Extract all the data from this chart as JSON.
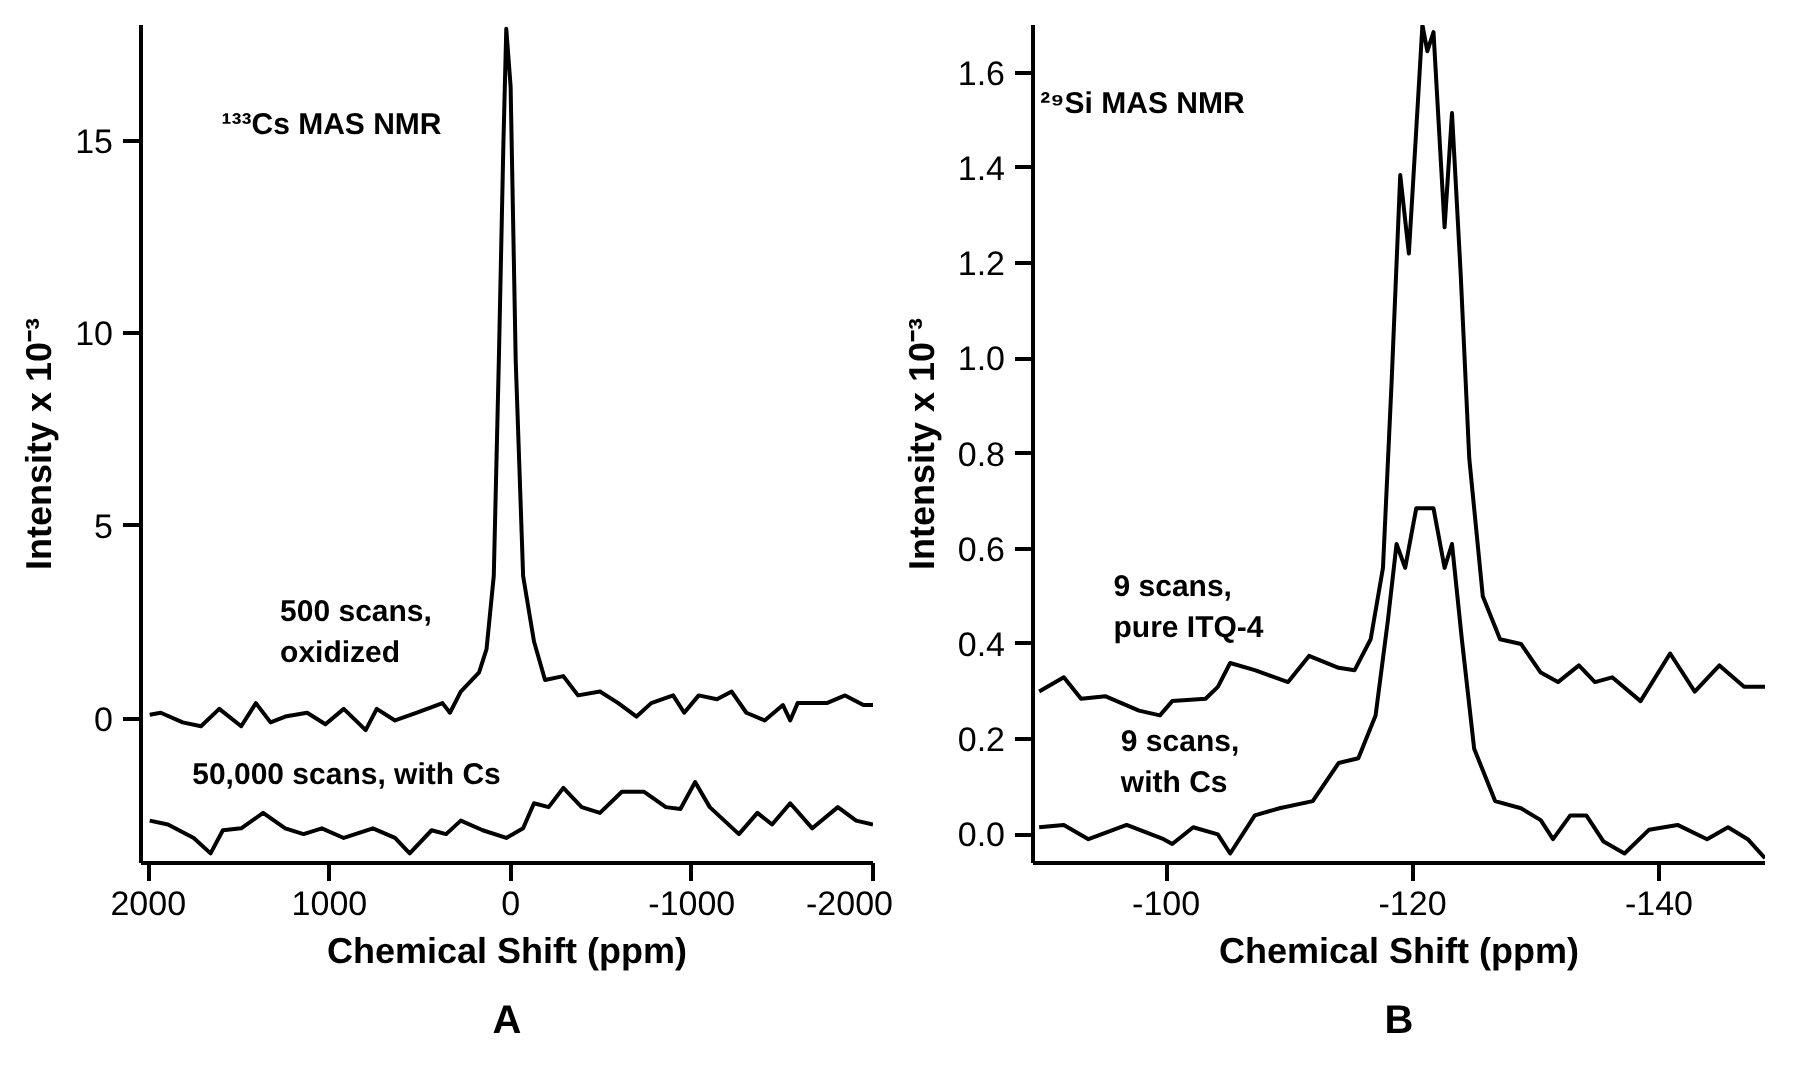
{
  "chart_data": [
    {
      "type": "line",
      "xlabel": "Chemical Shift (ppm)",
      "ylabel": "Intensity x 10⁻³",
      "annotations": [
        "¹³³Cs MAS NMR",
        "A"
      ],
      "xlim": [
        2040,
        -2000
      ],
      "ylim": [
        -3.75,
        18
      ],
      "xticks": [
        2000,
        1000,
        0,
        -1000,
        -2000
      ],
      "yticks": [
        0,
        5,
        10,
        15
      ],
      "grid": false,
      "marker": "none",
      "line_style": "solid",
      "series": [
        {
          "name": "500 scans,\noxidized",
          "color": "#000000",
          "x": [
            1992,
            1931,
            1810,
            1709,
            1608,
            1487,
            1406,
            1325,
            1244,
            1123,
            1022,
            921,
            800,
            739,
            638,
            517,
            376,
            335,
            275,
            174,
            133,
            93,
            65,
            40,
            24,
            0,
            -28,
            -69,
            -129,
            -190,
            -291,
            -372,
            -493,
            -594,
            -695,
            -776,
            -897,
            -958,
            -1038,
            -1139,
            -1220,
            -1301,
            -1402,
            -1503,
            -1543,
            -1584,
            -1745,
            -1846,
            -1947,
            -2000
          ],
          "values": [
            0.1,
            0.15,
            -0.1,
            -0.2,
            0.25,
            -0.2,
            0.4,
            -0.1,
            0.05,
            0.15,
            -0.15,
            0.25,
            -0.3,
            0.25,
            -0.05,
            0.15,
            0.4,
            0.15,
            0.7,
            1.2,
            1.8,
            3.7,
            9.3,
            14.9,
            17.9,
            16.4,
            9.3,
            3.7,
            2.0,
            1.0,
            1.1,
            0.6,
            0.7,
            0.4,
            0.05,
            0.4,
            0.6,
            0.15,
            0.6,
            0.5,
            0.7,
            0.15,
            -0.05,
            0.35,
            -0.05,
            0.4,
            0.4,
            0.6,
            0.35,
            0.35
          ]
        },
        {
          "name": "50,000 scans, with Cs",
          "color": "#000000",
          "x": [
            1992,
            1891,
            1749,
            1656,
            1588,
            1487,
            1366,
            1244,
            1143,
            1042,
            921,
            760,
            638,
            557,
            436,
            356,
            275,
            154,
            24,
            -69,
            -129,
            -210,
            -291,
            -392,
            -493,
            -614,
            -735,
            -857,
            -937,
            -1018,
            -1099,
            -1260,
            -1362,
            -1443,
            -1543,
            -1665,
            -1806,
            -1907,
            -2000
          ],
          "values": [
            -2.65,
            -2.75,
            -3.1,
            -3.5,
            -2.9,
            -2.85,
            -2.45,
            -2.85,
            -3.0,
            -2.85,
            -3.1,
            -2.85,
            -3.1,
            -3.5,
            -2.9,
            -3.0,
            -2.65,
            -2.9,
            -3.1,
            -2.85,
            -2.2,
            -2.3,
            -1.8,
            -2.3,
            -2.45,
            -1.9,
            -1.9,
            -2.3,
            -2.35,
            -1.65,
            -2.3,
            -3.0,
            -2.45,
            -2.75,
            -2.2,
            -2.85,
            -2.3,
            -2.65,
            -2.75
          ]
        }
      ]
    },
    {
      "type": "line",
      "xlabel": "Chemical Shift (ppm)",
      "ylabel": "Intensity x 10⁻³",
      "annotations": [
        "²⁹Si MAS NMR",
        "B"
      ],
      "xlim": [
        -89.2,
        -148.6
      ],
      "ylim": [
        -0.06,
        1.7
      ],
      "xticks": [
        -100,
        -120,
        -140
      ],
      "yticks": [
        {
          "value": 0,
          "label": "0.0"
        },
        0.2,
        0.4,
        0.6,
        0.8,
        {
          "value": 1,
          "label": "1.0"
        },
        1.2,
        1.4,
        1.6
      ],
      "grid": false,
      "marker": "none",
      "line_style": "solid",
      "series": [
        {
          "name": "9 scans,\npure ITQ-4",
          "color": "#000000",
          "x": [
            -89.7,
            -91.7,
            -93.1,
            -95.1,
            -97.8,
            -99.5,
            -100.5,
            -103.2,
            -104.2,
            -105.2,
            -107.2,
            -109.9,
            -111.6,
            -114.0,
            -115.3,
            -116.6,
            -117.6,
            -118.3,
            -119.0,
            -119.7,
            -120.3,
            -120.8,
            -121.2,
            -121.7,
            -122.6,
            -123.2,
            -123.9,
            -124.6,
            -125.7,
            -127.1,
            -128.8,
            -130.4,
            -131.8,
            -133.5,
            -134.8,
            -136.2,
            -138.5,
            -140.9,
            -142.9,
            -144.9,
            -146.9,
            -148.6
          ],
          "values": [
            0.3,
            0.33,
            0.285,
            0.29,
            0.26,
            0.25,
            0.28,
            0.285,
            0.31,
            0.36,
            0.345,
            0.32,
            0.375,
            0.35,
            0.345,
            0.41,
            0.56,
            0.95,
            1.385,
            1.22,
            1.48,
            1.7,
            1.645,
            1.685,
            1.275,
            1.515,
            1.18,
            0.79,
            0.5,
            0.41,
            0.4,
            0.34,
            0.32,
            0.355,
            0.32,
            0.33,
            0.28,
            0.38,
            0.3,
            0.355,
            0.31,
            0.31
          ]
        },
        {
          "name": "9 scans,\nwith Cs",
          "color": "#000000",
          "x": [
            -89.7,
            -91.7,
            -93.7,
            -96.8,
            -99.8,
            -100.5,
            -102.2,
            -104.2,
            -105.2,
            -107.2,
            -109.2,
            -111.9,
            -114.0,
            -115.6,
            -117.0,
            -118.0,
            -118.7,
            -119.4,
            -120.3,
            -121.7,
            -122.6,
            -123.2,
            -124.0,
            -125.0,
            -126.7,
            -128.8,
            -130.4,
            -131.4,
            -132.8,
            -134.1,
            -135.5,
            -137.2,
            -139.2,
            -141.5,
            -143.9,
            -145.6,
            -147.2,
            -148.6
          ],
          "values": [
            0.015,
            0.02,
            -0.01,
            0.02,
            -0.01,
            -0.02,
            0.015,
            0.0,
            -0.04,
            0.04,
            0.055,
            0.07,
            0.15,
            0.16,
            0.25,
            0.45,
            0.61,
            0.56,
            0.685,
            0.685,
            0.56,
            0.61,
            0.41,
            0.18,
            0.07,
            0.055,
            0.03,
            -0.01,
            0.04,
            0.04,
            -0.015,
            -0.04,
            0.01,
            0.02,
            -0.01,
            0.015,
            -0.01,
            -0.05
          ]
        }
      ]
    }
  ]
}
